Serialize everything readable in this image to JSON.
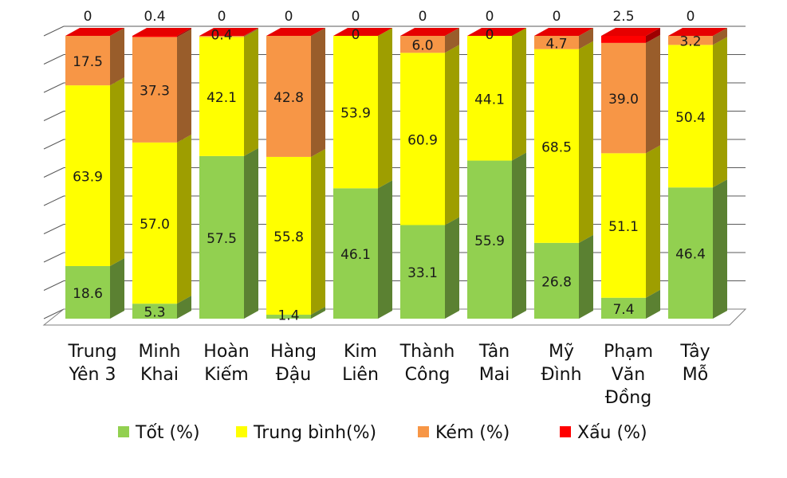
{
  "chart_data": {
    "type": "bar",
    "stacked": true,
    "style": "3d-column",
    "categories": [
      [
        "Trung",
        "Yên 3"
      ],
      [
        "Minh",
        "Khai"
      ],
      [
        "Hoàn",
        "Kiếm"
      ],
      [
        "Hàng",
        "Đậu"
      ],
      [
        "Kim",
        "Liên"
      ],
      [
        "Thành",
        "Công"
      ],
      [
        "Tân",
        "Mai"
      ],
      [
        "Mỹ",
        "Đình"
      ],
      [
        "Phạm",
        "Văn",
        "Đồng"
      ],
      [
        "Tây",
        "Mỗ"
      ]
    ],
    "series": [
      {
        "name": "Tốt (%)",
        "color": "#92d050",
        "values": [
          18.6,
          5.3,
          57.5,
          1.4,
          46.1,
          33.1,
          55.9,
          26.8,
          7.4,
          46.4
        ]
      },
      {
        "name": "Trung bình(%)",
        "color": "#ffff00",
        "values": [
          63.9,
          57.0,
          42.1,
          55.8,
          53.9,
          60.9,
          44.1,
          68.5,
          51.1,
          50.4
        ]
      },
      {
        "name": "Kém (%)",
        "color": "#f79646",
        "values": [
          17.5,
          37.3,
          0.4,
          42.8,
          0,
          6.0,
          0,
          4.7,
          39.0,
          3.2
        ]
      },
      {
        "name": "Xấu (%)",
        "color": "#ff0000",
        "values": [
          0,
          0.4,
          0,
          0,
          0,
          0,
          0,
          0,
          2.5,
          0
        ]
      }
    ],
    "labels": [
      [
        "18.6",
        "63.9",
        "17.5",
        "0"
      ],
      [
        "5.3",
        "57.0",
        "37.3",
        "0.4"
      ],
      [
        "57.5",
        "42.1",
        "0.4",
        "0"
      ],
      [
        "1.4",
        "55.8",
        "42.8",
        "0"
      ],
      [
        "46.1",
        "53.9",
        "0",
        "0"
      ],
      [
        "33.1",
        "60.9",
        "6.0",
        "0"
      ],
      [
        "55.9",
        "44.1",
        "0",
        "0"
      ],
      [
        "26.8",
        "68.5",
        "4.7",
        "0"
      ],
      [
        "7.4",
        "51.1",
        "39.0",
        "2.5"
      ],
      [
        "46.4",
        "50.4",
        "3.2",
        "0"
      ]
    ],
    "ylim": [
      0,
      100
    ],
    "grid": true,
    "legend_position": "bottom"
  }
}
